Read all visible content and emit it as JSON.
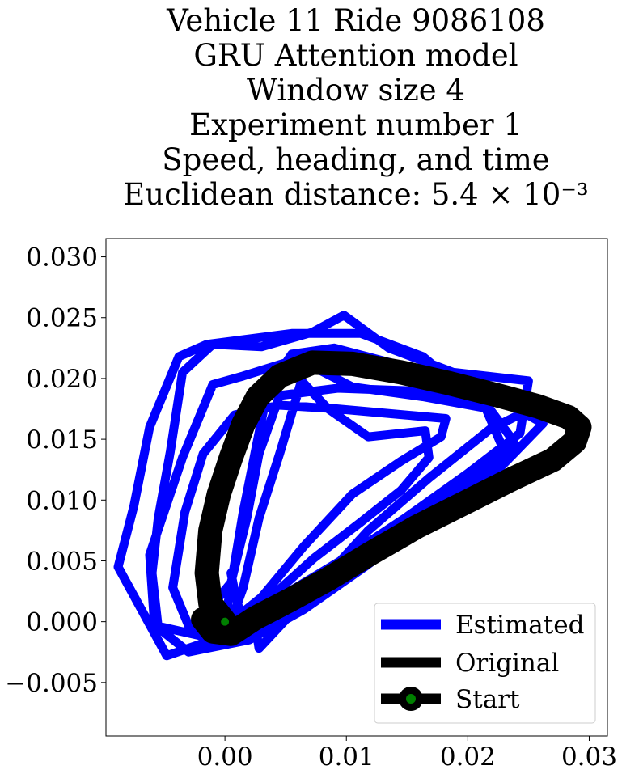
{
  "chart_data": {
    "type": "line",
    "title_lines": [
      "Vehicle 11 Ride 9086108",
      "GRU Attention model",
      "Window size 4",
      "Experiment number 1",
      "Speed, heading, and time",
      "Euclidean distance: 5.4 × 10⁻³"
    ],
    "xlabel": "",
    "ylabel": "",
    "xlim": [
      -0.0098,
      0.0315
    ],
    "ylim": [
      -0.0094,
      0.0315
    ],
    "xticks": [
      0.0,
      0.01,
      0.02,
      0.03
    ],
    "xtick_labels": [
      "0.00",
      "0.01",
      "0.02",
      "0.03"
    ],
    "yticks": [
      -0.005,
      0.0,
      0.005,
      0.01,
      0.015,
      0.02,
      0.025,
      0.03
    ],
    "ytick_labels": [
      "−0.005",
      "0.000",
      "0.005",
      "0.010",
      "0.015",
      "0.020",
      "0.025",
      "0.030"
    ],
    "grid": false,
    "legend_position": "lower right",
    "series": [
      {
        "name": "Estimated",
        "color": "#0000ff",
        "points": [
          [
            0.0,
            0.0
          ],
          [
            0.0005,
            0.003
          ],
          [
            0.0015,
            0.009
          ],
          [
            0.0025,
            0.014
          ],
          [
            0.0035,
            0.019
          ],
          [
            0.0055,
            0.022
          ],
          [
            0.009,
            0.0225
          ],
          [
            0.014,
            0.0212
          ],
          [
            0.019,
            0.0195
          ],
          [
            0.0235,
            0.0178
          ],
          [
            0.0262,
            0.0163
          ],
          [
            0.0225,
            0.0125
          ],
          [
            0.017,
            0.0085
          ],
          [
            0.0115,
            0.0045
          ],
          [
            0.0065,
            0.001
          ],
          [
            0.002,
            -0.0015
          ],
          [
            -0.003,
            -0.0025
          ],
          [
            -0.0055,
            -0.0005
          ],
          [
            -0.006,
            0.004
          ],
          [
            -0.0055,
            0.0085
          ],
          [
            -0.0045,
            0.014
          ],
          [
            -0.0035,
            0.0205
          ],
          [
            -0.001,
            0.0228
          ],
          [
            0.003,
            0.0226
          ],
          [
            0.0072,
            0.0238
          ],
          [
            0.0098,
            0.0252
          ],
          [
            0.0135,
            0.0225
          ],
          [
            0.0188,
            0.0205
          ],
          [
            0.025,
            0.0198
          ],
          [
            0.0243,
            0.0155
          ],
          [
            0.02,
            0.0122
          ],
          [
            0.0148,
            0.0085
          ],
          [
            0.0095,
            0.005
          ],
          [
            0.0045,
            0.002
          ],
          [
            -0.001,
            -0.0015
          ],
          [
            -0.0048,
            -0.0028
          ],
          [
            -0.0088,
            0.0045
          ],
          [
            -0.0075,
            0.0095
          ],
          [
            -0.0062,
            0.016
          ],
          [
            -0.0038,
            0.0218
          ],
          [
            -0.0015,
            0.0228
          ],
          [
            0.0055,
            0.0237
          ],
          [
            0.0112,
            0.0237
          ],
          [
            0.0163,
            0.0218
          ],
          [
            0.0215,
            0.0175
          ],
          [
            0.0233,
            0.0133
          ],
          [
            0.0185,
            0.0106
          ],
          [
            0.0135,
            0.0073
          ],
          [
            0.0085,
            0.004
          ],
          [
            0.0035,
            0.0008
          ],
          [
            -0.0018,
            -0.0012
          ],
          [
            -0.0058,
            -0.0003
          ],
          [
            -0.0062,
            0.0055
          ],
          [
            -0.0035,
            0.0135
          ],
          [
            -0.001,
            0.0195
          ],
          [
            0.0015,
            0.0202
          ],
          [
            0.006,
            0.0216
          ],
          [
            0.0105,
            0.0193
          ],
          [
            0.0163,
            0.0185
          ],
          [
            0.0218,
            0.0175
          ],
          [
            0.0238,
            0.0148
          ],
          [
            0.0195,
            0.0108
          ],
          [
            0.0142,
            0.0068
          ],
          [
            0.0092,
            0.0035
          ],
          [
            0.0025,
            -0.0002
          ],
          [
            0.0028,
            -0.0022
          ],
          [
            0.0072,
            0.0025
          ],
          [
            0.0118,
            0.0075
          ],
          [
            0.0168,
            0.0118
          ],
          [
            0.0218,
            0.0158
          ],
          [
            0.0258,
            0.0178
          ],
          [
            0.0205,
            0.0183
          ],
          [
            0.0148,
            0.019
          ],
          [
            0.0093,
            0.0192
          ],
          [
            0.0045,
            0.0186
          ],
          [
            0.0028,
            0.0138
          ],
          [
            0.0018,
            0.0085
          ],
          [
            0.0005,
            0.0032
          ],
          [
            -0.0028,
            -0.0008
          ],
          [
            -0.0043,
            0.0028
          ],
          [
            -0.0033,
            0.009
          ],
          [
            -0.0018,
            0.0138
          ],
          [
            0.0008,
            0.017
          ],
          [
            0.0045,
            0.0178
          ],
          [
            0.0092,
            0.0175
          ],
          [
            0.0148,
            0.017
          ],
          [
            0.0182,
            0.0167
          ],
          [
            0.0178,
            0.0152
          ],
          [
            0.0145,
            0.0132
          ],
          [
            0.0105,
            0.0105
          ],
          [
            0.0065,
            0.0062
          ],
          [
            0.003,
            0.002
          ],
          [
            0.0005,
            0.0
          ],
          [
            0.0015,
            0.0028
          ],
          [
            0.0028,
            0.0085
          ],
          [
            0.0045,
            0.0138
          ],
          [
            0.0063,
            0.0198
          ],
          [
            0.0085,
            0.0175
          ],
          [
            0.0118,
            0.0152
          ],
          [
            0.0165,
            0.0157
          ],
          [
            0.0168,
            0.0135
          ],
          [
            0.0145,
            0.0108
          ],
          [
            0.0112,
            0.0082
          ],
          [
            0.0073,
            0.0052
          ],
          [
            0.0032,
            0.0015
          ],
          [
            0.0013,
            0.0005
          ],
          [
            0.0008,
            0.0025
          ],
          [
            0.0005,
            0.004
          ]
        ]
      },
      {
        "name": "Original",
        "color": "#000000",
        "points": [
          [
            0.0,
            0.0
          ],
          [
            -0.0012,
            0.0015
          ],
          [
            -0.0015,
            0.004
          ],
          [
            -0.0012,
            0.0075
          ],
          [
            -0.0005,
            0.0105
          ],
          [
            0.0005,
            0.0135
          ],
          [
            0.0015,
            0.0162
          ],
          [
            0.0027,
            0.0185
          ],
          [
            0.0045,
            0.0202
          ],
          [
            0.0072,
            0.0213
          ],
          [
            0.0105,
            0.0212
          ],
          [
            0.0145,
            0.0205
          ],
          [
            0.0185,
            0.0196
          ],
          [
            0.0225,
            0.0186
          ],
          [
            0.0258,
            0.0177
          ],
          [
            0.0283,
            0.0168
          ],
          [
            0.0292,
            0.016
          ],
          [
            0.0288,
            0.0148
          ],
          [
            0.027,
            0.0133
          ],
          [
            0.0238,
            0.0118
          ],
          [
            0.0198,
            0.0098
          ],
          [
            0.0158,
            0.0078
          ],
          [
            0.0118,
            0.0055
          ],
          [
            0.0085,
            0.0035
          ],
          [
            0.0052,
            0.0017
          ],
          [
            0.0025,
            0.0003
          ],
          [
            0.0005,
            -0.001
          ],
          [
            -0.001,
            -0.0008
          ],
          [
            -0.0018,
            0.0002
          ],
          [
            -0.0008,
            0.0002
          ],
          [
            0.0,
            0.0
          ]
        ]
      }
    ],
    "start_point": {
      "name": "Start",
      "x": 0.0,
      "y": 0.0,
      "marker_color": "#008000",
      "edge_color": "#000000"
    },
    "legend": [
      {
        "label": "Estimated",
        "color": "#0000ff",
        "kind": "line"
      },
      {
        "label": "Original",
        "color": "#000000",
        "kind": "line"
      },
      {
        "label": "Start",
        "color": "#000000",
        "kind": "marker",
        "marker_color": "#008000"
      }
    ]
  }
}
